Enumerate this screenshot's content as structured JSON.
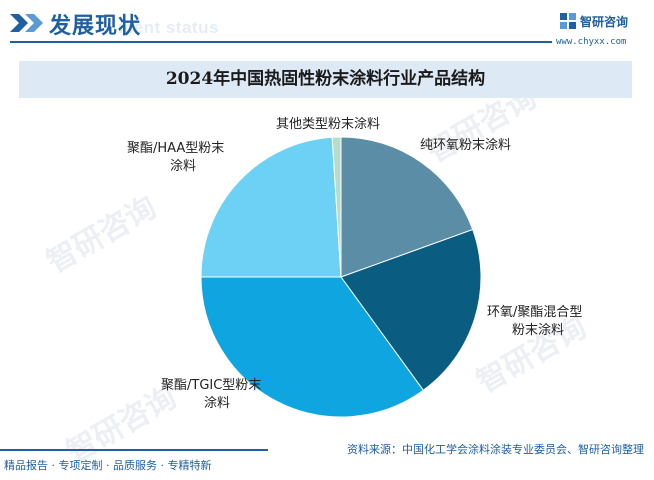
{
  "header": {
    "title": "发展现状",
    "subtitle": "ment status",
    "brand_name": "智研咨询",
    "brand_url": "www.chyxx.com"
  },
  "chart_data": {
    "type": "pie",
    "title": "2024年中国热固性粉末涂料行业产品结构",
    "slices": [
      {
        "label": "纯环氧粉末涂料",
        "value": 19.5,
        "color": "#5b8ea6"
      },
      {
        "label": "环氧/聚酯混合型粉末涂料",
        "value": 20.5,
        "color": "#0a5d80"
      },
      {
        "label": "聚酯/TGIC型粉末涂料",
        "value": 35.0,
        "color": "#0ea5e0"
      },
      {
        "label": "聚酯/HAA型粉末涂料",
        "value": 24.0,
        "color": "#6cd1f5"
      },
      {
        "label": "其他类型粉末涂料",
        "value": 1.0,
        "color": "#b5dccd"
      }
    ],
    "start": "12 o'clock, clockwise"
  },
  "labels": {
    "l0": "纯环氧粉末涂料",
    "l1a": "环氧/聚酯混合型",
    "l1b": "粉末涂料",
    "l2a": "聚酯/TGIC型粉末",
    "l2b": "涂料",
    "l3a": "聚酯/HAA型粉末",
    "l3b": "涂料",
    "l4": "其他类型粉末涂料"
  },
  "watermark": "智研咨询",
  "footer": {
    "left": "精品报告 · 专项定制 · 品质服务 · 专精特新",
    "source": "资料来源：中国化工学会涂料涂装专业委员会、智研咨询整理"
  }
}
